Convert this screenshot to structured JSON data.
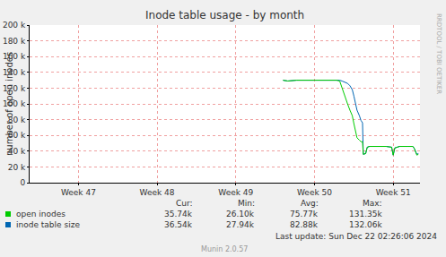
{
  "chart_data": {
    "type": "line",
    "title": "Inode table usage - by month",
    "y_label": "number of open inodes",
    "x": [
      49.6,
      49.66,
      49.77,
      49.94,
      50.11,
      50.28,
      50.32,
      50.35,
      50.38,
      50.42,
      50.45,
      50.48,
      50.5,
      50.52,
      50.54,
      50.57,
      50.59,
      50.61,
      50.62,
      50.65,
      50.67,
      50.7,
      50.79,
      50.91,
      50.98,
      51.0,
      51.02,
      51.08,
      51.19,
      51.25,
      51.27,
      51.3,
      51.32
    ],
    "series": [
      {
        "name": "open inodes",
        "color": "#00cc00",
        "values": [
          130000,
          129000,
          130000,
          130000,
          130000,
          130000,
          129000,
          120000,
          110000,
          100000,
          92000,
          85000,
          75000,
          65000,
          57000,
          54000,
          52000,
          52000,
          36000,
          37000,
          45000,
          46000,
          46000,
          46000,
          45000,
          35000,
          44000,
          46000,
          46000,
          46000,
          43000,
          35000,
          36000
        ],
        "stats": [
          "35.74k",
          "26.10k",
          "75.77k",
          "131.35k"
        ]
      },
      {
        "name": "inode table size",
        "color": "#0066b3",
        "values": [
          130000,
          129000,
          130000,
          130000,
          130000,
          130000,
          130000,
          129000,
          128000,
          126000,
          123000,
          118000,
          110000,
          100000,
          92000,
          85000,
          79000,
          76000,
          36000,
          37000,
          45000,
          46000,
          46000,
          46000,
          45000,
          35000,
          44000,
          46000,
          46000,
          46000,
          43000,
          36000,
          37000
        ],
        "stats": [
          "36.54k",
          "27.94k",
          "82.88k",
          "132.06k"
        ]
      }
    ],
    "stats_headers": [
      "Cur:",
      "Min:",
      "Avg:",
      "Max:"
    ],
    "xlim": [
      46.38,
      51.34
    ],
    "xticks": [
      {
        "value": 47,
        "label": "Week 47"
      },
      {
        "value": 48,
        "label": "Week 48"
      },
      {
        "value": 49,
        "label": "Week 49"
      },
      {
        "value": 50,
        "label": "Week 50"
      },
      {
        "value": 51,
        "label": "Week 51"
      }
    ],
    "ylim": [
      0,
      200000
    ],
    "yticks": [
      0,
      {
        "value": 20000,
        "label": "20 k"
      },
      {
        "value": 40000,
        "label": "40 k"
      },
      {
        "value": 60000,
        "label": "60 k"
      },
      {
        "value": 80000,
        "label": "80 k"
      },
      {
        "value": 100000,
        "label": "100 k"
      },
      {
        "value": 120000,
        "label": "120 k"
      },
      {
        "value": 140000,
        "label": "140 k"
      },
      {
        "value": 160000,
        "label": "160 k"
      },
      {
        "value": 180000,
        "label": "180 k"
      },
      {
        "value": 200000,
        "label": "200 k"
      }
    ],
    "grid": true,
    "footer": "Last update: Sun Dec 22 02:26:06 2024",
    "credit": "Munin 2.0.57",
    "side_text": "RRDTOOL / TOBI OETIKER"
  }
}
